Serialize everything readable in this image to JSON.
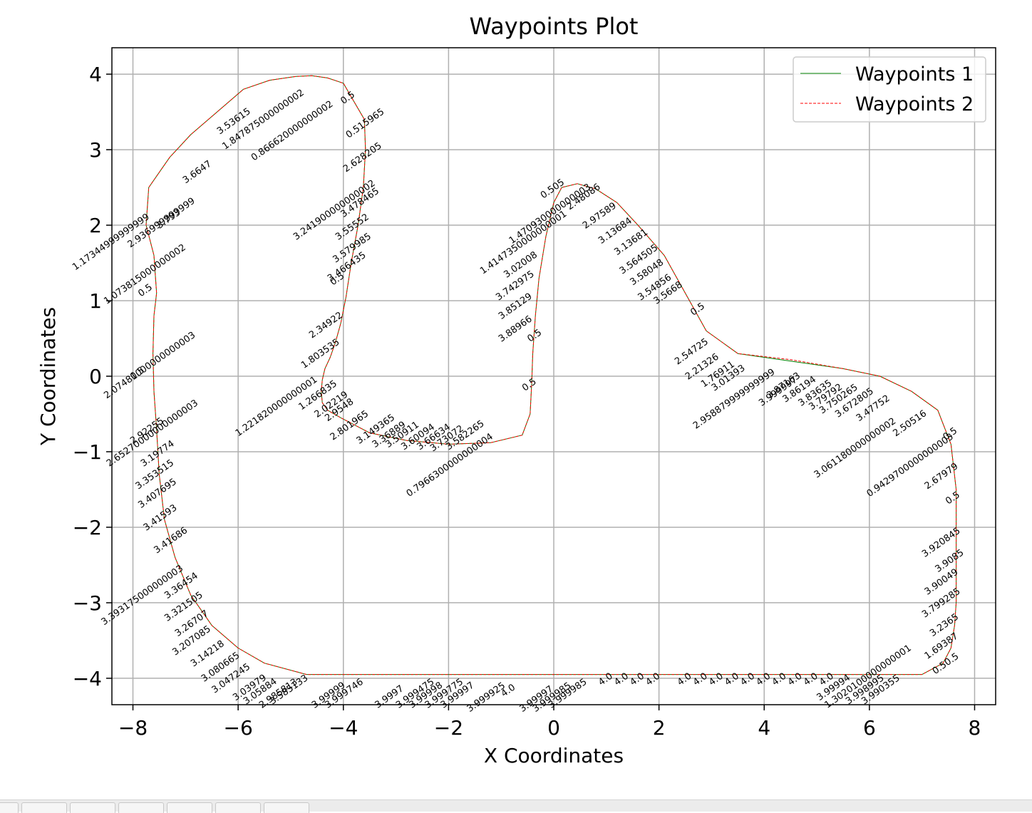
{
  "chart_data": {
    "type": "line",
    "title": "Waypoints Plot",
    "xlabel": "X Coordinates",
    "ylabel": "Y Coordinates",
    "xlim": [
      -8.4,
      8.4
    ],
    "ylim": [
      -4.35,
      4.35
    ],
    "xticks": [
      -8,
      -6,
      -4,
      -2,
      0,
      2,
      4,
      6,
      8
    ],
    "xtick_labels": [
      "−8",
      "−6",
      "−4",
      "−2",
      "0",
      "2",
      "4",
      "6",
      "8"
    ],
    "yticks": [
      -4,
      -3,
      -2,
      -1,
      0,
      1,
      2,
      3,
      4
    ],
    "ytick_labels": [
      "−4",
      "−3",
      "−2",
      "−1",
      "0",
      "1",
      "2",
      "3",
      "4"
    ],
    "grid": true,
    "legend_position": "top-right",
    "series": [
      {
        "name": "Waypoints 1",
        "color": "#008000",
        "style": "solid",
        "x": [
          -4.3,
          -4.0,
          -3.85,
          -3.6,
          -3.58,
          -3.62,
          -3.72,
          -3.85,
          -3.95,
          -4.05,
          -4.15,
          -4.25,
          -4.35,
          -4.4,
          -4.42,
          -4.4,
          -4.3,
          -4.05,
          -3.5,
          -2.8,
          -2.0,
          -1.2,
          -0.6,
          -0.45,
          -0.42,
          -0.4,
          -0.35,
          -0.28,
          -0.15,
          0.0,
          0.15,
          0.45,
          0.8,
          1.2,
          1.6,
          2.1,
          2.5,
          2.9,
          3.5,
          4.5,
          5.5,
          6.2,
          6.8,
          7.3,
          7.55,
          7.65,
          7.65,
          7.65,
          7.62,
          7.55,
          7.4,
          7.0,
          6.0,
          4.0,
          2.0,
          0.0,
          -2.0,
          -4.0,
          -4.7,
          -5.5,
          -6.0,
          -6.5,
          -6.9,
          -7.2,
          -7.4,
          -7.5,
          -7.55,
          -7.6,
          -7.62,
          -7.6,
          -7.55,
          -7.6,
          -7.75,
          -7.7,
          -7.3,
          -6.9,
          -6.4,
          -5.9,
          -5.4,
          -4.9,
          -4.6,
          -4.3
        ],
        "y": [
          3.95,
          3.88,
          3.7,
          3.4,
          3.0,
          2.5,
          2.0,
          1.5,
          1.05,
          0.7,
          0.45,
          0.25,
          0.1,
          -0.05,
          -0.2,
          -0.35,
          -0.45,
          -0.55,
          -0.75,
          -0.85,
          -0.9,
          -0.88,
          -0.78,
          -0.5,
          -0.1,
          0.3,
          0.8,
          1.3,
          1.85,
          2.3,
          2.5,
          2.55,
          2.48,
          2.3,
          2.0,
          1.6,
          1.1,
          0.6,
          0.3,
          0.2,
          0.1,
          0.0,
          -0.2,
          -0.45,
          -0.9,
          -1.5,
          -2.5,
          -3.0,
          -3.3,
          -3.6,
          -3.8,
          -3.95,
          -3.95,
          -3.95,
          -3.95,
          -3.95,
          -3.95,
          -3.95,
          -3.95,
          -3.8,
          -3.6,
          -3.3,
          -2.9,
          -2.4,
          -1.9,
          -1.3,
          -0.7,
          -0.2,
          0.3,
          0.8,
          1.1,
          1.6,
          2.0,
          2.5,
          2.9,
          3.2,
          3.5,
          3.8,
          3.92,
          3.97,
          3.98,
          3.95
        ]
      },
      {
        "name": "Waypoints 2",
        "color": "#ff0000",
        "style": "dashed",
        "x": [
          -4.3,
          -4.0,
          -3.85,
          -3.6,
          -3.58,
          -3.62,
          -3.72,
          -3.85,
          -3.95,
          -4.05,
          -4.15,
          -4.25,
          -4.35,
          -4.4,
          -4.42,
          -4.4,
          -4.3,
          -4.05,
          -3.5,
          -2.8,
          -2.0,
          -1.2,
          -0.6,
          -0.45,
          -0.42,
          -0.4,
          -0.35,
          -0.28,
          -0.15,
          0.0,
          0.15,
          0.45,
          0.8,
          1.2,
          1.6,
          2.1,
          2.5,
          2.9,
          3.5,
          4.5,
          5.5,
          6.2,
          6.8,
          7.3,
          7.55,
          7.65,
          7.65,
          7.65,
          7.62,
          7.55,
          7.4,
          7.0,
          6.0,
          4.0,
          2.0,
          0.0,
          -2.0,
          -4.0,
          -4.7,
          -5.5,
          -6.0,
          -6.5,
          -6.9,
          -7.2,
          -7.4,
          -7.5,
          -7.55,
          -7.6,
          -7.62,
          -7.6,
          -7.55,
          -7.6,
          -7.75,
          -7.7,
          -7.3,
          -6.9,
          -6.4,
          -5.9,
          -5.4,
          -4.9,
          -4.6,
          -4.3
        ],
        "y": [
          3.95,
          3.88,
          3.7,
          3.4,
          3.0,
          2.5,
          2.0,
          1.5,
          1.05,
          0.7,
          0.45,
          0.25,
          0.1,
          -0.05,
          -0.2,
          -0.35,
          -0.45,
          -0.55,
          -0.75,
          -0.85,
          -0.9,
          -0.88,
          -0.78,
          -0.5,
          -0.1,
          0.3,
          0.8,
          1.3,
          1.85,
          2.3,
          2.5,
          2.55,
          2.48,
          2.3,
          2.0,
          1.6,
          1.1,
          0.6,
          0.3,
          0.22,
          0.1,
          0.0,
          -0.2,
          -0.45,
          -0.9,
          -1.5,
          -2.5,
          -3.0,
          -3.3,
          -3.6,
          -3.8,
          -3.95,
          -3.95,
          -3.95,
          -3.95,
          -3.95,
          -3.95,
          -3.95,
          -3.95,
          -3.8,
          -3.6,
          -3.3,
          -2.9,
          -2.4,
          -1.9,
          -1.3,
          -0.7,
          -0.2,
          0.3,
          0.8,
          1.1,
          1.6,
          2.0,
          2.5,
          2.9,
          3.2,
          3.5,
          3.8,
          3.92,
          3.97,
          3.98,
          3.95
        ]
      }
    ],
    "annotations": [
      {
        "text": "0.5",
        "x": -4.0,
        "y": 3.6
      },
      {
        "text": "0.515965",
        "x": -3.9,
        "y": 3.15
      },
      {
        "text": "2.628205",
        "x": -3.95,
        "y": 2.7
      },
      {
        "text": "3.241900000000002",
        "x": -4.9,
        "y": 1.8
      },
      {
        "text": "3.478465",
        "x": -4.0,
        "y": 2.1
      },
      {
        "text": "3.55552",
        "x": -4.1,
        "y": 1.8
      },
      {
        "text": "3.579985",
        "x": -4.15,
        "y": 1.5
      },
      {
        "text": "3.466435",
        "x": -4.25,
        "y": 1.25
      },
      {
        "text": "0.5",
        "x": -4.2,
        "y": 1.2
      },
      {
        "text": "2.34922",
        "x": -4.6,
        "y": 0.5
      },
      {
        "text": "1.803535",
        "x": -4.75,
        "y": 0.1
      },
      {
        "text": "1.221820000000001",
        "x": -6.0,
        "y": -0.8
      },
      {
        "text": "1.266835",
        "x": -4.8,
        "y": -0.45
      },
      {
        "text": "2.02219",
        "x": -4.5,
        "y": -0.55
      },
      {
        "text": "2.9548",
        "x": -4.3,
        "y": -0.6
      },
      {
        "text": "2.801965",
        "x": -4.2,
        "y": -0.85
      },
      {
        "text": "3.149365",
        "x": -3.7,
        "y": -0.9
      },
      {
        "text": "3.36889",
        "x": -3.4,
        "y": -0.95
      },
      {
        "text": "3.50911",
        "x": -3.15,
        "y": -0.95
      },
      {
        "text": "3.60094",
        "x": -2.85,
        "y": -0.98
      },
      {
        "text": "3.66634",
        "x": -2.55,
        "y": -0.98
      },
      {
        "text": "3.73072",
        "x": -2.3,
        "y": -1.0
      },
      {
        "text": "3.582265",
        "x": -2.0,
        "y": -0.98
      },
      {
        "text": "0.7966300000000004",
        "x": -2.75,
        "y": -1.6
      },
      {
        "text": "0.5",
        "x": -0.55,
        "y": -0.2
      },
      {
        "text": "1.4147350000000001",
        "x": -1.35,
        "y": 1.35
      },
      {
        "text": "1.470930000000003",
        "x": -0.8,
        "y": 1.75
      },
      {
        "text": "3.02008",
        "x": -0.9,
        "y": 1.3
      },
      {
        "text": "3.742975",
        "x": -1.05,
        "y": 1.0
      },
      {
        "text": "3.85129",
        "x": -1.0,
        "y": 0.75
      },
      {
        "text": "3.88966",
        "x": -1.0,
        "y": 0.45
      },
      {
        "text": "0.5",
        "x": -0.45,
        "y": 0.45
      },
      {
        "text": "0.505",
        "x": -0.2,
        "y": 2.35
      },
      {
        "text": "2.48086",
        "x": 0.3,
        "y": 2.2
      },
      {
        "text": "2.97589",
        "x": 0.6,
        "y": 1.95
      },
      {
        "text": "3.13684",
        "x": 0.9,
        "y": 1.75
      },
      {
        "text": "3.13681",
        "x": 1.2,
        "y": 1.6
      },
      {
        "text": "3.564505",
        "x": 1.3,
        "y": 1.35
      },
      {
        "text": "3.58048",
        "x": 1.5,
        "y": 1.2
      },
      {
        "text": "3.54856",
        "x": 1.65,
        "y": 1.0
      },
      {
        "text": "3.5668",
        "x": 1.95,
        "y": 0.95
      },
      {
        "text": "0.5",
        "x": 2.65,
        "y": 0.8
      },
      {
        "text": "2.54725",
        "x": 2.35,
        "y": 0.15
      },
      {
        "text": "2.21326",
        "x": 2.55,
        "y": -0.05
      },
      {
        "text": "1.76911",
        "x": 2.85,
        "y": -0.15
      },
      {
        "text": "3.01393",
        "x": 3.05,
        "y": -0.2
      },
      {
        "text": "2.958879999999999",
        "x": 2.7,
        "y": -0.7
      },
      {
        "text": "3.999997",
        "x": 3.95,
        "y": -0.4
      },
      {
        "text": "3.87163",
        "x": 4.1,
        "y": -0.3
      },
      {
        "text": "3.86194",
        "x": 4.4,
        "y": -0.35
      },
      {
        "text": "3.83635",
        "x": 4.7,
        "y": -0.4
      },
      {
        "text": "3.79792",
        "x": 4.9,
        "y": -0.45
      },
      {
        "text": "3.750265",
        "x": 5.1,
        "y": -0.5
      },
      {
        "text": "3.672805",
        "x": 5.4,
        "y": -0.55
      },
      {
        "text": "3.47752",
        "x": 5.8,
        "y": -0.6
      },
      {
        "text": "3.061180000000002",
        "x": 5.0,
        "y": -1.35
      },
      {
        "text": "2.50516",
        "x": 6.5,
        "y": -0.8
      },
      {
        "text": "0.9429700000000003",
        "x": 6.0,
        "y": -1.6
      },
      {
        "text": "0.5",
        "x": 7.45,
        "y": -0.85
      },
      {
        "text": "2.67979",
        "x": 7.1,
        "y": -1.5
      },
      {
        "text": "0.5",
        "x": 7.5,
        "y": -1.7
      },
      {
        "text": "3.920845",
        "x": 7.05,
        "y": -2.4
      },
      {
        "text": "3.9085",
        "x": 7.3,
        "y": -2.6
      },
      {
        "text": "3.90049",
        "x": 7.1,
        "y": -2.9
      },
      {
        "text": "3.799285",
        "x": 7.05,
        "y": -3.2
      },
      {
        "text": "3.2365",
        "x": 7.2,
        "y": -3.45
      },
      {
        "text": "1.69387",
        "x": 7.1,
        "y": -3.75
      },
      {
        "text": "0.50.5",
        "x": 7.25,
        "y": -3.95
      },
      {
        "text": "1.3020100000000001",
        "x": 5.2,
        "y": -4.4
      },
      {
        "text": "2.07481000000000003",
        "x": -8.5,
        "y": -0.3
      },
      {
        "text": "2.65270000000000003",
        "x": -8.45,
        "y": -1.2
      },
      {
        "text": "2.92255",
        "x": -8.0,
        "y": -0.9
      },
      {
        "text": "3.19774",
        "x": -7.8,
        "y": -1.2
      },
      {
        "text": "3.353515",
        "x": -7.9,
        "y": -1.5
      },
      {
        "text": "3.407695",
        "x": -7.85,
        "y": -1.75
      },
      {
        "text": "3.41593",
        "x": -7.75,
        "y": -2.05
      },
      {
        "text": "3.41686",
        "x": -7.55,
        "y": -2.35
      },
      {
        "text": "3.393175000000003",
        "x": -8.55,
        "y": -3.3
      },
      {
        "text": "3.36454",
        "x": -7.35,
        "y": -2.95
      },
      {
        "text": "3.321505",
        "x": -7.35,
        "y": -3.25
      },
      {
        "text": "3.26707",
        "x": -7.15,
        "y": -3.45
      },
      {
        "text": "3.207085",
        "x": -7.2,
        "y": -3.7
      },
      {
        "text": "3.14218",
        "x": -6.85,
        "y": -3.85
      },
      {
        "text": "3.080665",
        "x": -6.65,
        "y": -4.05
      },
      {
        "text": "3.047245",
        "x": -6.45,
        "y": -4.2
      },
      {
        "text": "3.03979",
        "x": -6.05,
        "y": -4.3
      },
      {
        "text": "3.05884",
        "x": -5.85,
        "y": -4.35
      },
      {
        "text": "2.985813",
        "x": -5.55,
        "y": -4.4
      },
      {
        "text": "3.585133",
        "x": -5.35,
        "y": -4.35
      },
      {
        "text": "3.99999",
        "x": -4.55,
        "y": -4.4
      },
      {
        "text": "3.999746",
        "x": -4.3,
        "y": -4.4
      },
      {
        "text": "3.9997",
        "x": -3.35,
        "y": -4.4
      },
      {
        "text": "3.999475",
        "x": -2.95,
        "y": -4.4
      },
      {
        "text": "3.99998",
        "x": -2.7,
        "y": -4.4
      },
      {
        "text": "3.999775",
        "x": -2.4,
        "y": -4.4
      },
      {
        "text": "3.99997",
        "x": -2.1,
        "y": -4.4
      },
      {
        "text": "3.999925",
        "x": -1.6,
        "y": -4.45
      },
      {
        "text": "4.0",
        "x": -0.95,
        "y": -4.25
      },
      {
        "text": "3.99997",
        "x": -0.6,
        "y": -4.45
      },
      {
        "text": "3.999985",
        "x": -0.35,
        "y": -4.45
      },
      {
        "text": "3.999985",
        "x": -0.05,
        "y": -4.4
      },
      {
        "text": "4.0",
        "x": 0.9,
        "y": -4.1
      },
      {
        "text": "4.0",
        "x": 1.2,
        "y": -4.1
      },
      {
        "text": "4.0",
        "x": 1.5,
        "y": -4.1
      },
      {
        "text": "4.0",
        "x": 1.8,
        "y": -4.1
      },
      {
        "text": "4.0",
        "x": 2.4,
        "y": -4.1
      },
      {
        "text": "4.0",
        "x": 2.7,
        "y": -4.1
      },
      {
        "text": "4.0",
        "x": 3.0,
        "y": -4.1
      },
      {
        "text": "4.0",
        "x": 3.3,
        "y": -4.1
      },
      {
        "text": "4.0",
        "x": 3.6,
        "y": -4.1
      },
      {
        "text": "4.0",
        "x": 3.9,
        "y": -4.1
      },
      {
        "text": "4.0",
        "x": 4.2,
        "y": -4.1
      },
      {
        "text": "4.0",
        "x": 4.5,
        "y": -4.1
      },
      {
        "text": "4.0",
        "x": 4.8,
        "y": -4.1
      },
      {
        "text": "4.0",
        "x": 5.1,
        "y": -4.1
      },
      {
        "text": "3.99994",
        "x": 5.05,
        "y": -4.3
      },
      {
        "text": "3.998995",
        "x": 5.6,
        "y": -4.35
      },
      {
        "text": "3.990355",
        "x": 5.9,
        "y": -4.35
      },
      {
        "text": "0.5",
        "x": -7.85,
        "y": 1.05
      },
      {
        "text": "1.17344999999999",
        "x": -9.1,
        "y": 1.4
      },
      {
        "text": "1.073815000000002",
        "x": -8.5,
        "y": 0.95
      },
      {
        "text": "2.936999999999",
        "x": -8.05,
        "y": 1.7
      },
      {
        "text": "3.793",
        "x": -7.5,
        "y": 1.95
      },
      {
        "text": "0.5",
        "x": -8.0,
        "y": -0.05
      },
      {
        "text": "1.847875000000002",
        "x": -6.25,
        "y": 3.0
      },
      {
        "text": "0.866620000000002",
        "x": -5.7,
        "y": 2.85
      },
      {
        "text": "3.6647",
        "x": -7.0,
        "y": 2.55
      },
      {
        "text": "3.53615",
        "x": -6.35,
        "y": 3.2
      }
    ]
  },
  "toolbar": {
    "buttons": 6
  }
}
